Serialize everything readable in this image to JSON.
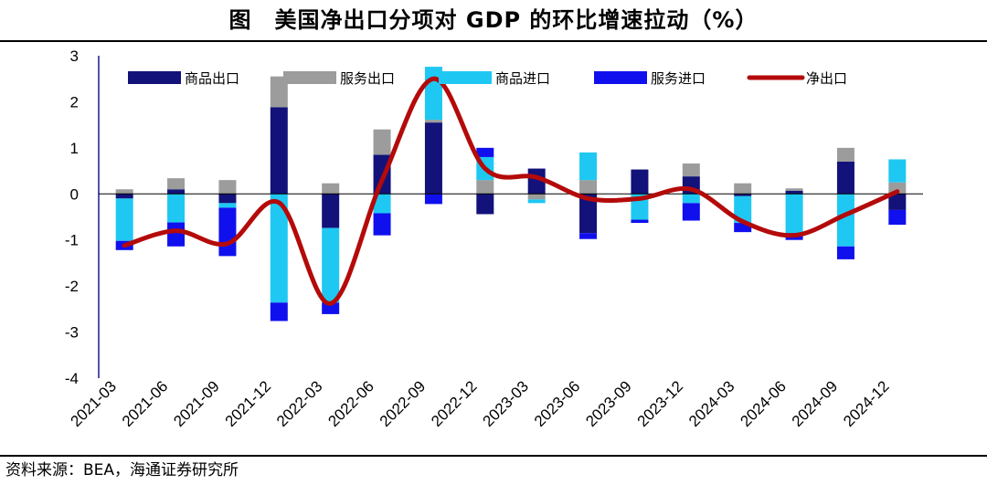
{
  "title": "图　美国净出口分项对 GDP 的环比增速拉动（%）",
  "source": "资料来源：BEA，海通证券研究所",
  "colors": {
    "goods_exports": "#12127a",
    "services_exports": "#9c9c9c",
    "goods_imports": "#1ec8f2",
    "services_imports": "#1010ee",
    "net_exports": "#b40a0a"
  },
  "chart_data": {
    "type": "bar",
    "stacked": true,
    "title": "美国净出口分项对 GDP 的环比增速拉动（%）",
    "xlabel": "",
    "ylabel": "",
    "ylim": [
      -4,
      3
    ],
    "yticks": [
      3,
      2,
      1,
      0,
      -1,
      -2,
      -3,
      -4
    ],
    "legend_position": "top",
    "categories": [
      "2021-03",
      "2021-06",
      "2021-09",
      "2021-12",
      "2022-03",
      "2022-06",
      "2022-09",
      "2022-12",
      "2023-03",
      "2023-06",
      "2023-09",
      "2023-12",
      "2024-03",
      "2024-06",
      "2024-09",
      "2024-12"
    ],
    "series": [
      {
        "name": "商品出口",
        "kind": "bar",
        "color_key": "goods_exports",
        "values": [
          -0.1,
          0.1,
          -0.2,
          1.88,
          -0.74,
          0.85,
          1.55,
          -0.44,
          0.55,
          -0.85,
          0.53,
          0.38,
          -0.05,
          0.07,
          0.7,
          -0.35
        ]
      },
      {
        "name": "服务出口",
        "kind": "bar",
        "color_key": "services_exports",
        "values": [
          0.1,
          0.24,
          0.3,
          0.67,
          0.23,
          0.55,
          0.06,
          0.3,
          -0.12,
          0.3,
          0.0,
          0.28,
          0.23,
          0.05,
          0.3,
          0.25
        ]
      },
      {
        "name": "商品进口",
        "kind": "bar",
        "color_key": "goods_imports",
        "values": [
          -0.92,
          -0.62,
          -0.1,
          -2.36,
          -1.62,
          -0.42,
          1.15,
          0.5,
          -0.08,
          0.6,
          -0.56,
          -0.2,
          -0.58,
          -0.85,
          -1.14,
          0.5
        ]
      },
      {
        "name": "服务进口",
        "kind": "bar",
        "color_key": "services_imports",
        "values": [
          -0.2,
          -0.52,
          -1.05,
          -0.4,
          -0.25,
          -0.48,
          -0.22,
          0.2,
          0.0,
          -0.13,
          -0.07,
          -0.38,
          -0.2,
          -0.15,
          -0.28,
          -0.32
        ]
      },
      {
        "name": "净出口",
        "kind": "line",
        "color_key": "net_exports",
        "values": [
          -1.12,
          -0.8,
          -1.08,
          -0.19,
          -2.38,
          0.3,
          2.5,
          0.55,
          0.36,
          -0.1,
          -0.1,
          0.1,
          -0.6,
          -0.9,
          -0.45,
          0.05
        ]
      }
    ]
  }
}
